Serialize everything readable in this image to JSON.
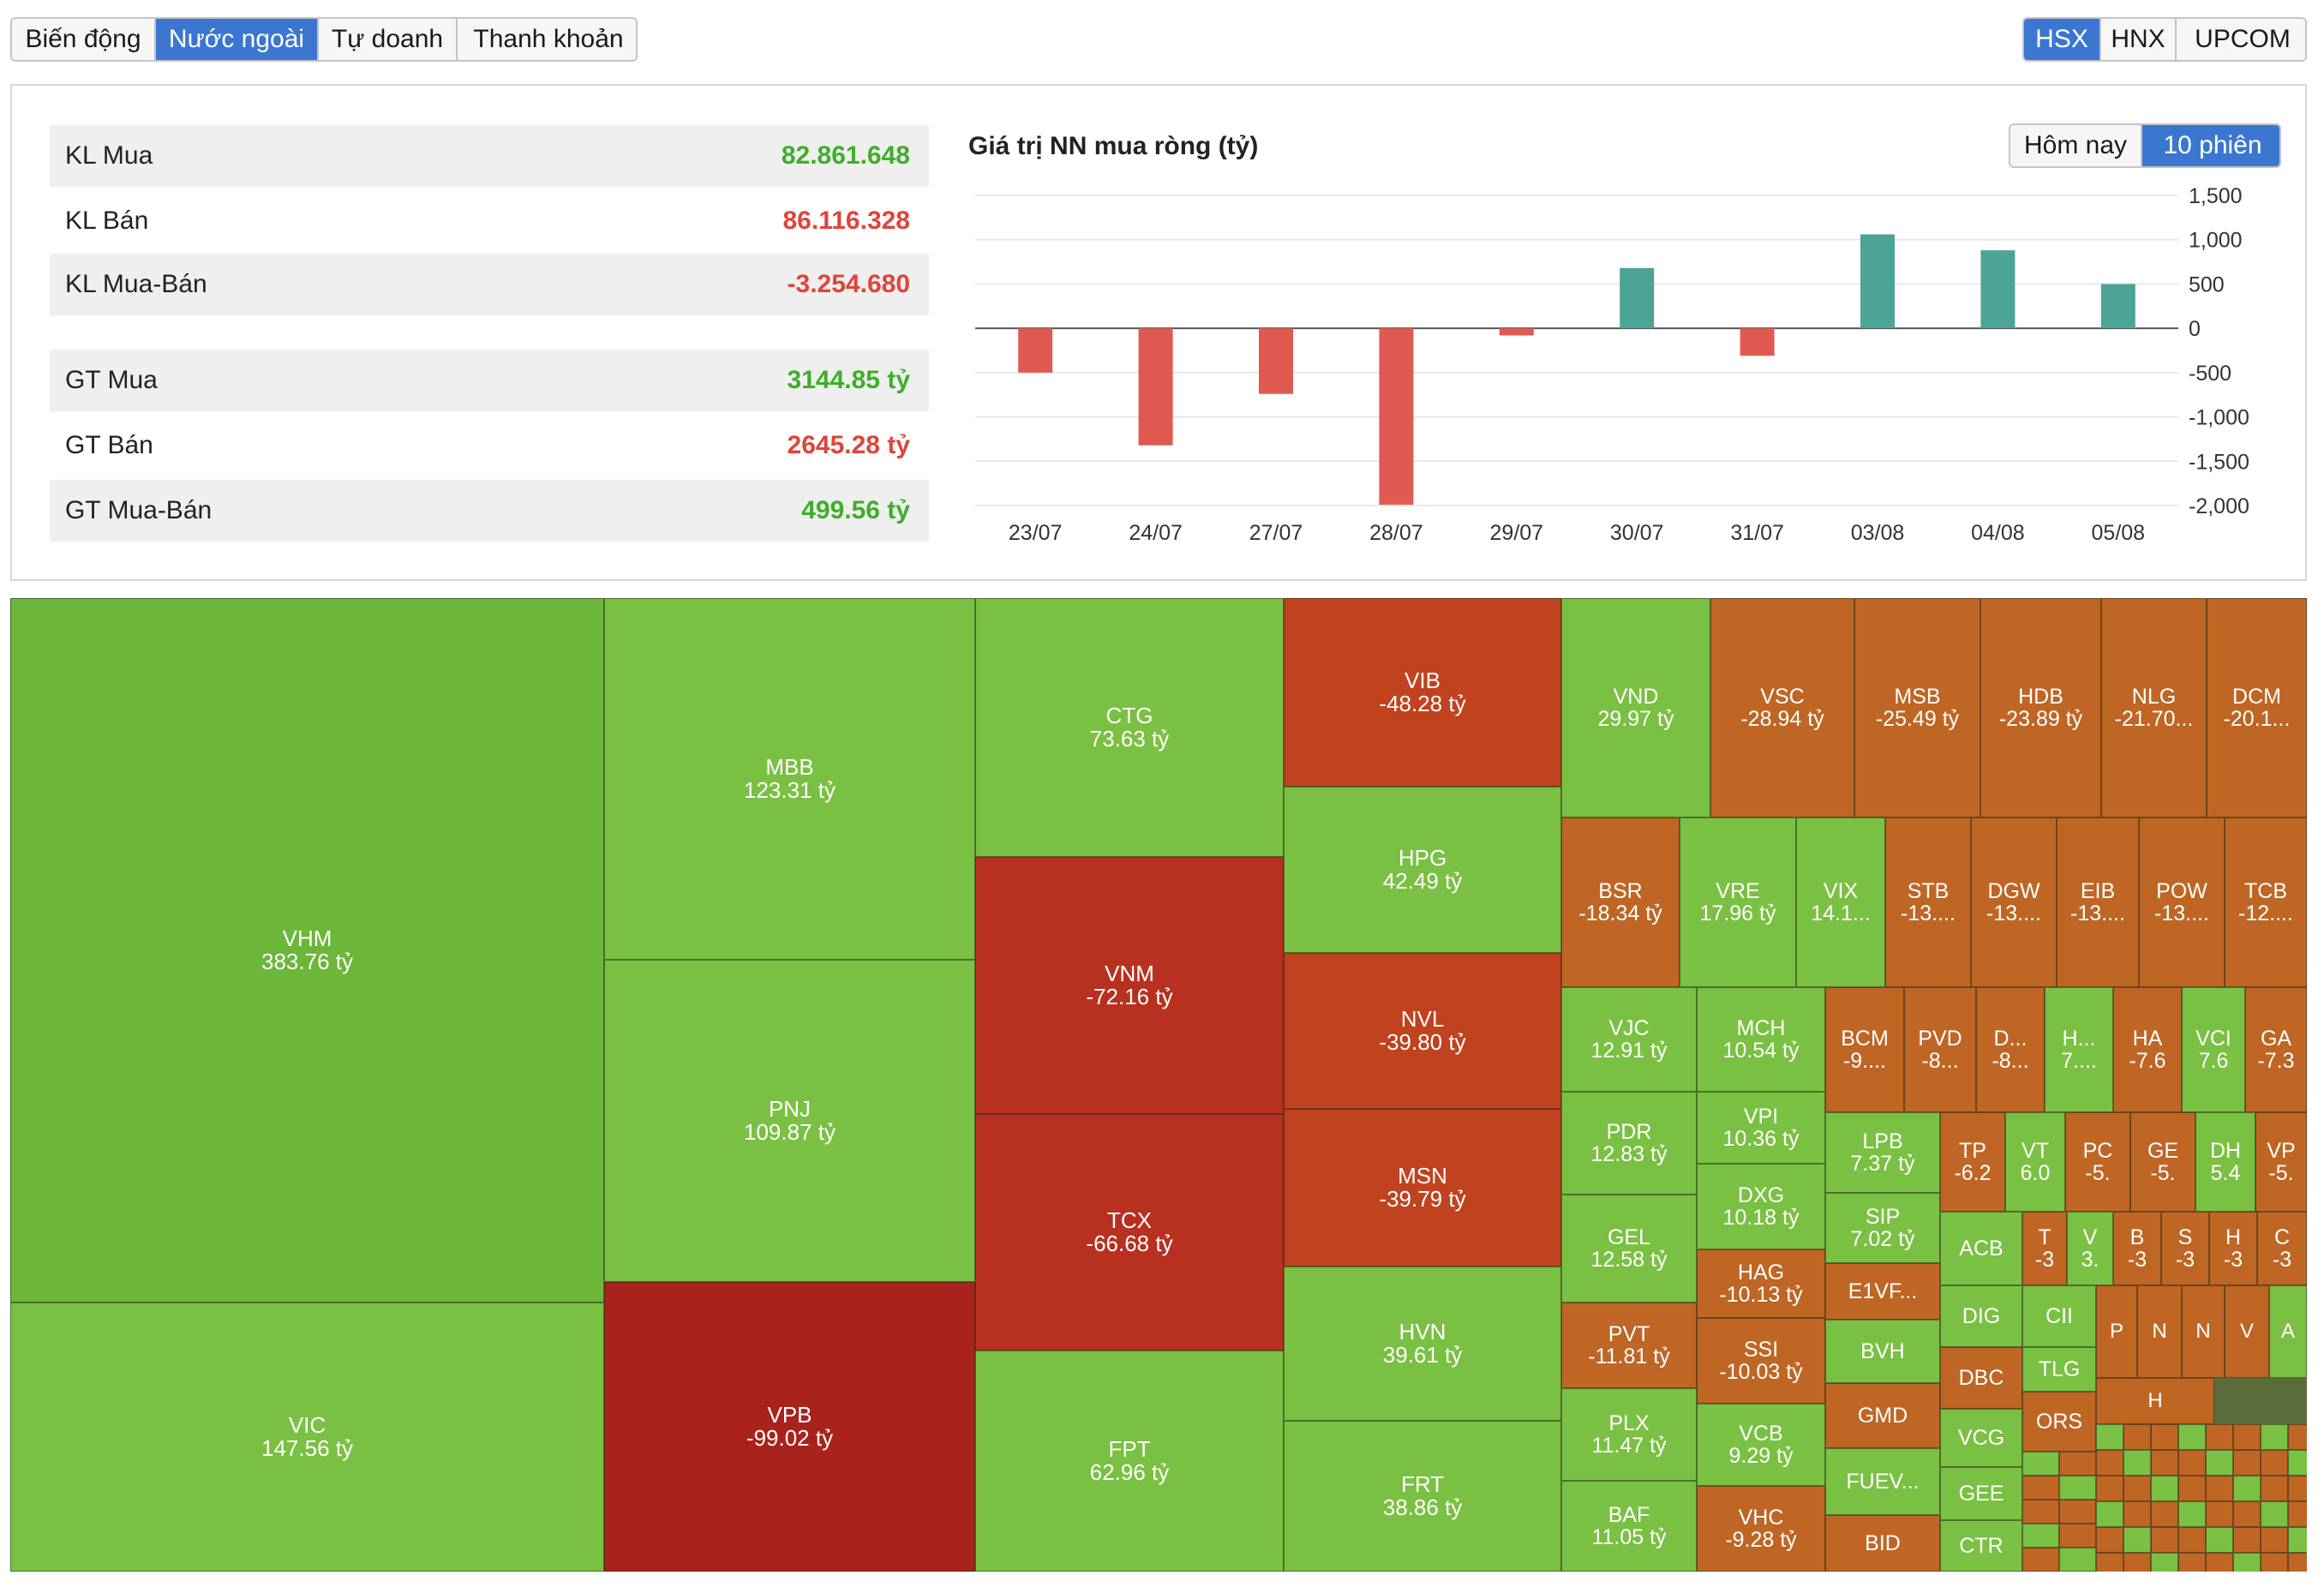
{
  "tabs": [
    "Biến động",
    "Nước ngoài",
    "Tự doanh",
    "Thanh khoản"
  ],
  "exchanges": [
    "HSX",
    "HNX",
    "UPCOM"
  ],
  "stats": [
    {
      "label": "KL Mua",
      "value": "82.861.648",
      "tone": "pos"
    },
    {
      "label": "KL Bán",
      "value": "86.116.328",
      "tone": "neg"
    },
    {
      "label": "KL Mua-Bán",
      "value": "-3.254.680",
      "tone": "neg"
    },
    {
      "label": "GT Mua",
      "value": "3144.85 tỷ",
      "tone": "pos"
    },
    {
      "label": "GT Bán",
      "value": "2645.28 tỷ",
      "tone": "neg"
    },
    {
      "label": "GT Mua-Bán",
      "value": "499.56 tỷ",
      "tone": "pos"
    }
  ],
  "period_buttons": [
    "Hôm nay",
    "10 phiên"
  ],
  "colors": {
    "positive": "#4ca496",
    "negative": "#e05a52",
    "active": "#3b77d1",
    "up_text": "#3fae2a",
    "down_text": "#e0443a"
  },
  "chart_data": {
    "type": "bar",
    "title": "Giá trị NN mua ròng (tỷ)",
    "categories": [
      "23/07",
      "24/07",
      "27/07",
      "28/07",
      "29/07",
      "30/07",
      "31/07",
      "03/08",
      "04/08",
      "05/08"
    ],
    "values": [
      -500,
      -1320,
      -740,
      -1990,
      -80,
      680,
      -310,
      1060,
      880,
      500
    ],
    "ylim": [
      -2000,
      1500
    ],
    "yticks": [
      "1,500",
      "1,000",
      "500",
      "0",
      "-500",
      "-1,000",
      "-1,500",
      "-2,000"
    ],
    "grid": true
  },
  "treemap": [
    {
      "t": "VHM",
      "v": "383.76 tỷ"
    },
    {
      "t": "VIC",
      "v": "147.56 tỷ"
    },
    {
      "t": "MBB",
      "v": "123.31 tỷ"
    },
    {
      "t": "PNJ",
      "v": "109.87 tỷ"
    },
    {
      "t": "VPB",
      "v": "-99.02 tỷ"
    },
    {
      "t": "CTG",
      "v": "73.63 tỷ"
    },
    {
      "t": "VNM",
      "v": "-72.16 tỷ"
    },
    {
      "t": "TCX",
      "v": "-66.68 tỷ"
    },
    {
      "t": "FPT",
      "v": "62.96 tỷ"
    },
    {
      "t": "VIB",
      "v": "-48.28 tỷ"
    },
    {
      "t": "HPG",
      "v": "42.49 tỷ"
    },
    {
      "t": "NVL",
      "v": "-39.80 tỷ"
    },
    {
      "t": "MSN",
      "v": "-39.79 tỷ"
    },
    {
      "t": "HVN",
      "v": "39.61 tỷ"
    },
    {
      "t": "FRT",
      "v": "38.86 tỷ"
    },
    {
      "t": "VND",
      "v": "29.97 tỷ"
    },
    {
      "t": "VSC",
      "v": "-28.94 tỷ"
    },
    {
      "t": "MSB",
      "v": "-25.49 tỷ"
    },
    {
      "t": "HDB",
      "v": "-23.89 tỷ"
    },
    {
      "t": "NLG",
      "v": "-21.70..."
    },
    {
      "t": "DCM",
      "v": "-20.1..."
    },
    {
      "t": "BSR",
      "v": "-18.34 tỷ"
    },
    {
      "t": "VRE",
      "v": "17.96 tỷ"
    },
    {
      "t": "VIX",
      "v": "14.1..."
    },
    {
      "t": "STB",
      "v": "-13...."
    },
    {
      "t": "DGW",
      "v": "-13...."
    },
    {
      "t": "EIB",
      "v": "-13...."
    },
    {
      "t": "POW",
      "v": "-13...."
    },
    {
      "t": "TCB",
      "v": "-12...."
    },
    {
      "t": "VJC",
      "v": "12.91 tỷ"
    },
    {
      "t": "MCH",
      "v": "10.54 tỷ"
    },
    {
      "t": "BCM",
      "v": "-9...."
    },
    {
      "t": "PVD",
      "v": "-8..."
    },
    {
      "t": "D...",
      "v": "-8..."
    },
    {
      "t": "H...",
      "v": "7...."
    },
    {
      "t": "HA",
      "v": "-7.6"
    },
    {
      "t": "VCI",
      "v": "7.6"
    },
    {
      "t": "GA",
      "v": "-7.3"
    },
    {
      "t": "PDR",
      "v": "12.83 tỷ"
    },
    {
      "t": "VPI",
      "v": "10.36 tỷ"
    },
    {
      "t": "LPB",
      "v": "7.37 tỷ"
    },
    {
      "t": "TP",
      "v": "-6.2"
    },
    {
      "t": "VT",
      "v": "6.0"
    },
    {
      "t": "PC",
      "v": "-5."
    },
    {
      "t": "GE",
      "v": "-5."
    },
    {
      "t": "DH",
      "v": "5.4"
    },
    {
      "t": "VP",
      "v": "-5."
    },
    {
      "t": "GEL",
      "v": "12.58 tỷ"
    },
    {
      "t": "DXG",
      "v": "10.18 tỷ"
    },
    {
      "t": "SIP",
      "v": "7.02 tỷ"
    },
    {
      "t": "ACB",
      "v": ""
    },
    {
      "t": "T",
      "v": "-3"
    },
    {
      "t": "V",
      "v": "3."
    },
    {
      "t": "B",
      "v": "-3"
    },
    {
      "t": "S",
      "v": "-3"
    },
    {
      "t": "H",
      "v": "-3"
    },
    {
      "t": "C",
      "v": "-3"
    },
    {
      "t": "HAG",
      "v": "-10.13 tỷ"
    },
    {
      "t": "E1VF...",
      "v": ""
    },
    {
      "t": "DIG",
      "v": ""
    },
    {
      "t": "CII",
      "v": ""
    },
    {
      "t": "P",
      "v": ""
    },
    {
      "t": "N",
      "v": ""
    },
    {
      "t": "N",
      "v": ""
    },
    {
      "t": "V",
      "v": ""
    },
    {
      "t": "A",
      "v": ""
    },
    {
      "t": "PVT",
      "v": "-11.81 tỷ"
    },
    {
      "t": "SSI",
      "v": "-10.03 tỷ"
    },
    {
      "t": "BVH",
      "v": ""
    },
    {
      "t": "DBC",
      "v": ""
    },
    {
      "t": "TLG",
      "v": ""
    },
    {
      "t": "H",
      "v": ""
    },
    {
      "t": "GMD",
      "v": ""
    },
    {
      "t": "VCG",
      "v": ""
    },
    {
      "t": "ORS",
      "v": ""
    },
    {
      "t": "PLX",
      "v": "11.47 tỷ"
    },
    {
      "t": "VCB",
      "v": "9.29 tỷ"
    },
    {
      "t": "FUEV...",
      "v": ""
    },
    {
      "t": "GEE",
      "v": ""
    },
    {
      "t": "BAF",
      "v": "11.05 tỷ"
    },
    {
      "t": "VHC",
      "v": "-9.28 tỷ"
    },
    {
      "t": "BID",
      "v": ""
    },
    {
      "t": "CTR",
      "v": ""
    }
  ]
}
